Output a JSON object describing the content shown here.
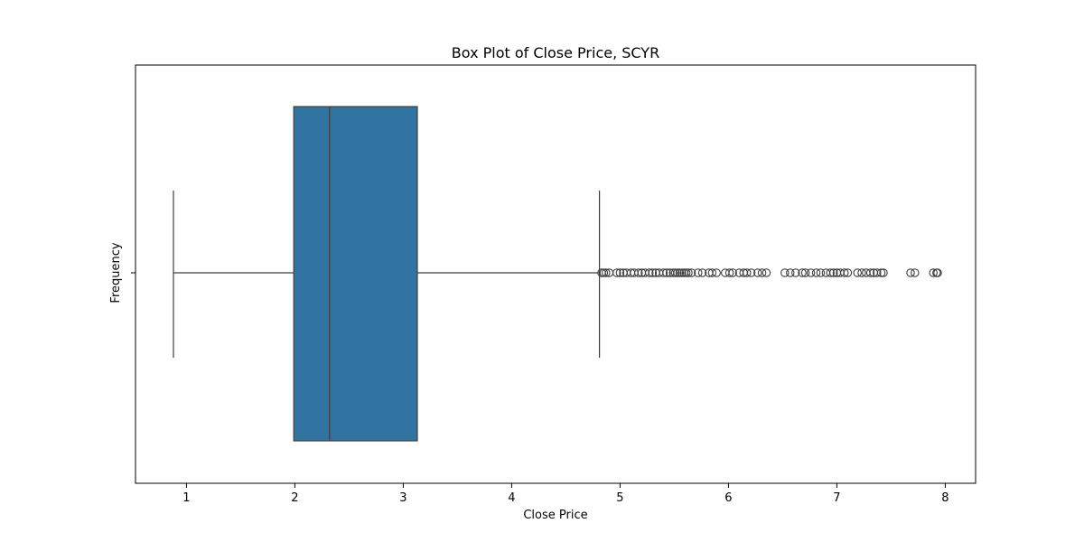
{
  "chart_data": {
    "type": "box",
    "title": "Box Plot of Close Price, SCYR",
    "xlabel": "Close Price",
    "ylabel": "Frequency",
    "xlim": [
      0.53,
      8.28
    ],
    "x_ticks": [
      1,
      2,
      3,
      4,
      5,
      6,
      7,
      8
    ],
    "grid": false,
    "box_color": "#3274a1",
    "line_color": "#3f3f3f",
    "stats": {
      "whisker_low": 0.88,
      "q1": 1.99,
      "median": 2.32,
      "q3": 3.13,
      "whisker_high": 4.81
    },
    "outliers": [
      4.83,
      4.85,
      4.87,
      4.9,
      4.97,
      5.0,
      5.03,
      5.06,
      5.1,
      5.13,
      5.17,
      5.2,
      5.23,
      5.27,
      5.3,
      5.33,
      5.36,
      5.4,
      5.43,
      5.46,
      5.49,
      5.51,
      5.53,
      5.55,
      5.57,
      5.59,
      5.61,
      5.63,
      5.66,
      5.72,
      5.76,
      5.82,
      5.85,
      5.89,
      5.97,
      6.01,
      6.04,
      6.1,
      6.14,
      6.17,
      6.21,
      6.27,
      6.31,
      6.35,
      6.52,
      6.57,
      6.62,
      6.68,
      6.71,
      6.76,
      6.81,
      6.85,
      6.9,
      6.94,
      6.97,
      7.0,
      7.03,
      7.07,
      7.1,
      7.19,
      7.23,
      7.27,
      7.31,
      7.34,
      7.37,
      7.41,
      7.43,
      7.68,
      7.72,
      7.89,
      7.92,
      7.93
    ]
  }
}
